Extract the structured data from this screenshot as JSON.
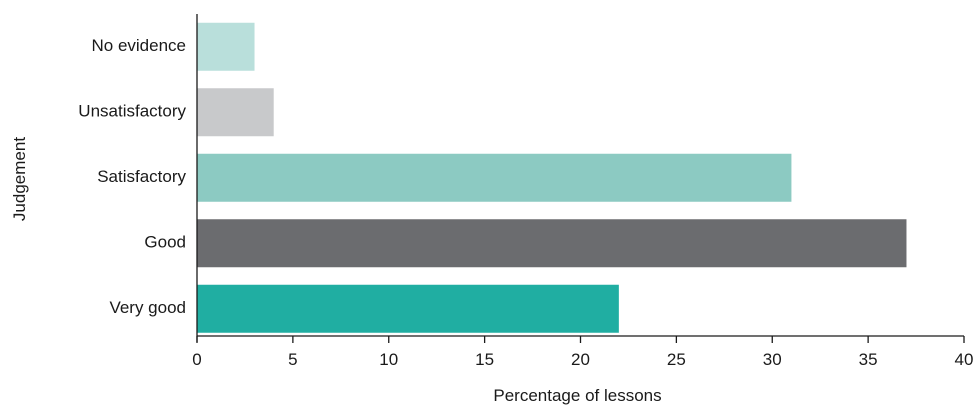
{
  "chart_data": {
    "type": "bar",
    "orientation": "horizontal",
    "categories": [
      "No evidence",
      "Unsatisfactory",
      "Satisfactory",
      "Good",
      "Very good"
    ],
    "values": [
      3,
      4,
      31,
      37,
      22
    ],
    "bar_colors": [
      "#b9dfdb",
      "#c8c9cb",
      "#8ccac2",
      "#6b6c6f",
      "#20aea2"
    ],
    "xlabel": "Percentage of lessons",
    "ylabel": "Judgement",
    "xlim": [
      0,
      40
    ],
    "xticks": [
      0,
      5,
      10,
      15,
      20,
      25,
      30,
      35,
      40
    ],
    "xtick_labels": [
      "0",
      "5",
      "10",
      "15",
      "20",
      "25",
      "30",
      "35",
      "40"
    ],
    "grid": false,
    "legend": "none"
  }
}
